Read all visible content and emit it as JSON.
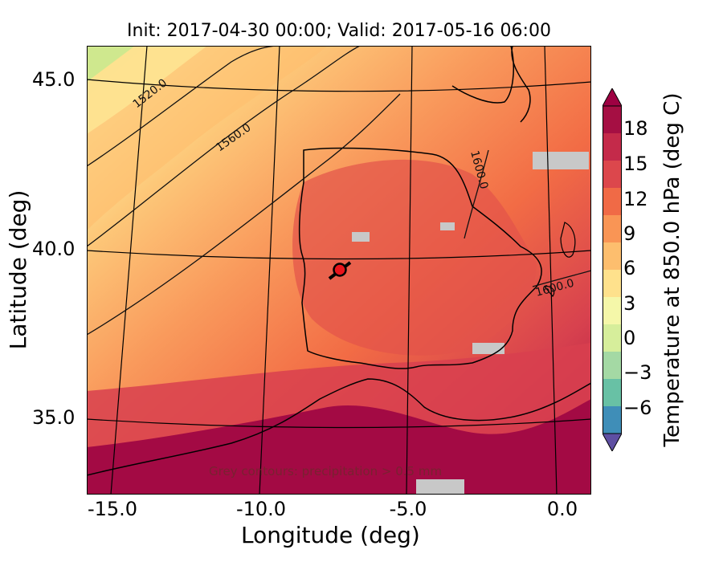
{
  "title": "Init: 2017-04-30 00:00; Valid: 2017-05-16 06:00",
  "x_axis": {
    "label": "Longitude (deg)",
    "ticks": [
      "-15.0",
      "-10.0",
      "-5.0",
      "0.0"
    ]
  },
  "y_axis": {
    "label": "Latitude (deg)",
    "ticks": [
      "45.0",
      "40.0",
      "35.0"
    ]
  },
  "colorbar": {
    "label": "Temperature at 850.0 hPa (deg C)",
    "ticks": [
      "18",
      "15",
      "12",
      "9",
      "6",
      "3",
      "0",
      "−3",
      "−6"
    ],
    "extend": "both",
    "colormap": "Spectral_r"
  },
  "contour_labels": [
    "1520.0",
    "1560.0",
    "1600.0",
    "1600.0"
  ],
  "note": "Grey contours: precipitation > 0.5 mm",
  "marker": {
    "longitude": -7.6,
    "latitude": 39.3,
    "color": "#e8141c"
  },
  "colors": {
    "hot": "#9e0142",
    "warm": "#f46d43",
    "mild": "#fdae61",
    "cool": "#fee08b",
    "cold": "#5e4fa2",
    "precip": "#c8c8c8"
  }
}
